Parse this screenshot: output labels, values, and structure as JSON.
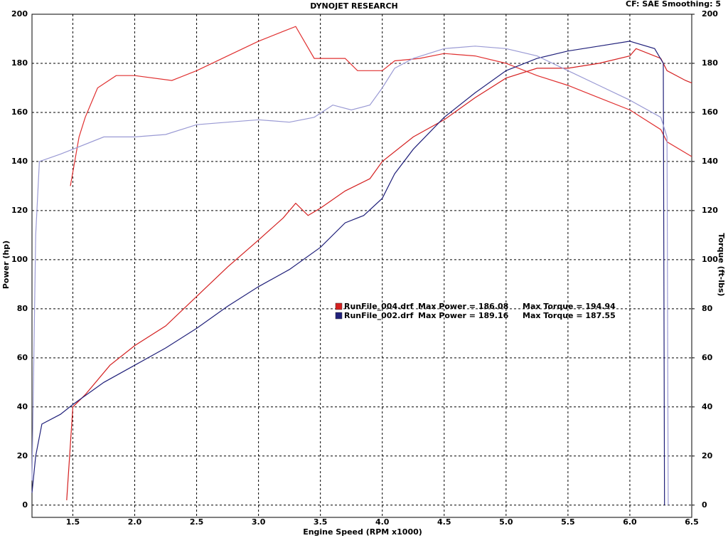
{
  "chart_data": {
    "type": "line",
    "title": "DYNOJET RESEARCH",
    "subtitle": "CF: SAE  Smoothing: 5",
    "x_label": "Engine Speed (RPM x1000)",
    "y_label": "Power (hp)",
    "y2_label": "Torque (ft-lbs)",
    "xlim": [
      1.17,
      6.5
    ],
    "ylim": [
      -5,
      200
    ],
    "y2lim": [
      -5,
      200
    ],
    "xticks": [
      1.5,
      {
        "value": 2.0,
        "label": "2.0"
      },
      2.5,
      {
        "value": 3.0,
        "label": "3.0"
      },
      3.5,
      {
        "value": 4.0,
        "label": "4.0"
      },
      4.5,
      {
        "value": 5.0,
        "label": "5.0"
      },
      5.5,
      {
        "value": 6.0,
        "label": "6.0"
      },
      6.5
    ],
    "yticks": [
      0,
      20,
      40,
      60,
      80,
      100,
      120,
      140,
      160,
      180,
      200
    ],
    "y2ticks": [
      0,
      20,
      40,
      60,
      80,
      100,
      120,
      140,
      160,
      180,
      200
    ],
    "grid": true,
    "legend": [
      {
        "name": "RunFile_004.drf",
        "color": "#d42020",
        "max_power": "Max Power = 186.08",
        "max_torque": "Max Torque = 194.94"
      },
      {
        "name": "RunFile_002.drf",
        "color": "#20207a",
        "max_power": "Max Power = 189.16",
        "max_torque": "Max Torque = 187.55"
      }
    ],
    "series": [
      {
        "color": "#d42020",
        "x": [
          1.45,
          1.5,
          1.6,
          1.8,
          2.0,
          2.25,
          2.5,
          2.75,
          3.0,
          3.2,
          3.3,
          3.4,
          3.5,
          3.7,
          3.9,
          4.0,
          4.25,
          4.5,
          4.75,
          5.0,
          5.25,
          5.5,
          5.75,
          6.0,
          6.05,
          6.25,
          6.3,
          6.45,
          6.5
        ],
        "values": [
          2,
          40,
          45,
          57,
          65,
          73,
          85,
          97,
          108,
          117,
          123,
          118,
          121,
          128,
          133,
          140,
          150,
          157,
          166,
          174,
          178,
          178,
          180,
          183,
          186,
          182,
          177,
          173,
          172
        ]
      },
      {
        "color": "#e03030",
        "axis": "y2",
        "x": [
          1.48,
          1.55,
          1.6,
          1.7,
          1.85,
          2.0,
          2.3,
          2.5,
          2.75,
          3.0,
          3.2,
          3.3,
          3.45,
          3.7,
          3.8,
          4.0,
          4.1,
          4.3,
          4.5,
          4.75,
          5.0,
          5.25,
          5.5,
          5.75,
          6.0,
          6.25,
          6.3,
          6.5
        ],
        "values": [
          130,
          150,
          158,
          170,
          175,
          175,
          173,
          177,
          183,
          189,
          193,
          195,
          182,
          182,
          177,
          177,
          181,
          182,
          184,
          183,
          180,
          175,
          171,
          166,
          161,
          153,
          148,
          142
        ]
      },
      {
        "color": "#20207a",
        "x": [
          1.17,
          1.2,
          1.25,
          1.4,
          1.5,
          1.75,
          2.0,
          2.25,
          2.5,
          2.75,
          3.0,
          3.25,
          3.5,
          3.7,
          3.85,
          4.0,
          4.1,
          4.25,
          4.5,
          4.75,
          5.0,
          5.25,
          5.5,
          5.75,
          6.0,
          6.2,
          6.27,
          6.28
        ],
        "values": [
          5,
          20,
          33,
          37,
          41,
          50,
          57,
          64,
          72,
          81,
          89,
          96,
          105,
          115,
          118,
          125,
          135,
          145,
          158,
          168,
          177,
          182,
          185,
          187,
          189,
          186,
          180,
          0
        ]
      },
      {
        "color": "#9a9ad4",
        "axis": "y2",
        "x": [
          1.17,
          1.2,
          1.23,
          1.4,
          1.5,
          1.75,
          2.0,
          2.25,
          2.5,
          2.75,
          3.0,
          3.25,
          3.45,
          3.6,
          3.75,
          3.9,
          4.0,
          4.1,
          4.25,
          4.5,
          4.75,
          5.0,
          5.25,
          5.5,
          5.75,
          6.0,
          6.25,
          6.3,
          6.31
        ],
        "values": [
          10,
          110,
          140,
          143,
          145,
          150,
          150,
          151,
          155,
          156,
          157,
          156,
          158,
          163,
          161,
          163,
          170,
          178,
          182,
          186,
          187,
          186,
          183,
          177,
          171,
          165,
          158,
          150,
          0
        ]
      }
    ]
  }
}
